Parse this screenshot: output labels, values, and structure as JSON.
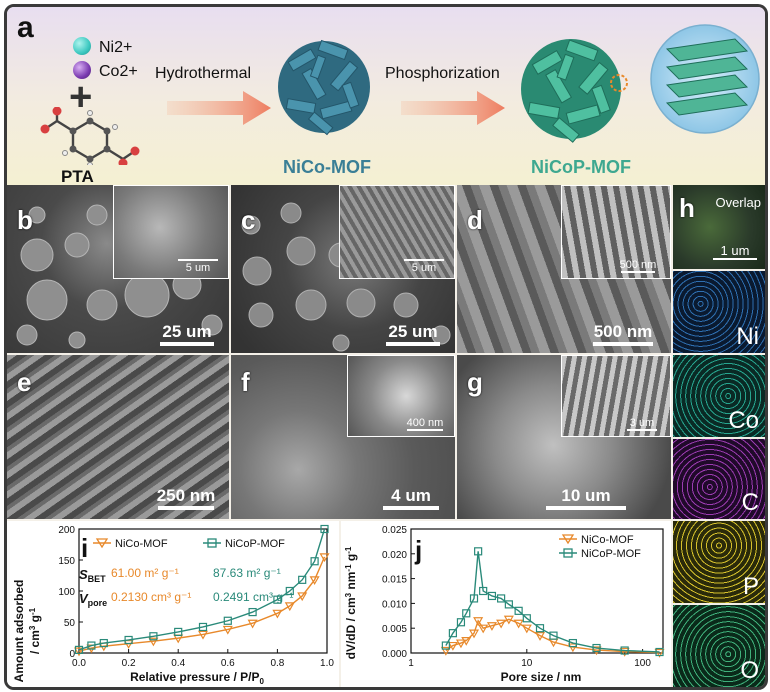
{
  "panel_a": {
    "label": "a",
    "ni": "Ni2+",
    "co": "Co2+",
    "plus": "+",
    "pta": "PTA",
    "step1": "Hydrothermal",
    "step2": "Phosphorization",
    "mof1": "NiCo-MOF",
    "mof2": "NiCoP-MOF",
    "colors": {
      "mof1": "#3a7f96",
      "mof2": "#3ea890",
      "ni": "#3cc8c0",
      "co": "#7a3ab0",
      "arrow": "#ee7d60"
    }
  },
  "sem": {
    "b": {
      "label": "b",
      "scale": "25 um",
      "inset_scale": "5 um"
    },
    "c": {
      "label": "c",
      "scale": "25 um",
      "inset_scale": "5 um"
    },
    "d": {
      "label": "d",
      "scale": "500 nm",
      "inset_scale": "500 nm"
    },
    "e": {
      "label": "e",
      "scale": "250 nm"
    },
    "f": {
      "label": "f",
      "scale": "4 um",
      "inset_scale": "400 nm"
    },
    "g": {
      "label": "g",
      "scale": "10 um",
      "inset_scale": "3 um"
    }
  },
  "panel_h": {
    "label": "h",
    "overlap": "Overlap",
    "scale": "1 um",
    "elements": [
      "Ni",
      "Co",
      "C",
      "P",
      "O"
    ],
    "colors": {
      "Ni": "#2e6fb0",
      "Co": "#27a58f",
      "C": "#9a3bb0",
      "P": "#d6c12c",
      "O": "#3fb07a"
    }
  },
  "panel_i": {
    "label": "i",
    "ylabel": "Amount adsorbed / cm3 g-1",
    "xlabel": "Relative pressure / P/P0",
    "legend": [
      "NiCo-MOF",
      "NiCoP-MOF"
    ],
    "sbet_label": "SBET",
    "vpore_label": "Vpore",
    "sbet_1": "61.00 m² g⁻¹",
    "sbet_2": "87.63 m² g⁻¹",
    "vpore_1": "0.2130 cm³ g⁻¹",
    "vpore_2": "0.2491 cm³ g⁻¹",
    "xticks": [
      "0.0",
      "0.2",
      "0.4",
      "0.6",
      "0.8",
      "1.0"
    ],
    "yticks": [
      "0",
      "50",
      "100",
      "150",
      "200"
    ]
  },
  "panel_j": {
    "label": "j",
    "ylabel": "dV/dD / cm3 nm-1 g-1",
    "xlabel": "Pore size / nm",
    "legend": [
      "NiCo-MOF",
      "NiCoP-MOF"
    ],
    "xticks": [
      "1",
      "10",
      "100"
    ],
    "yticks": [
      "0.000",
      "0.005",
      "0.010",
      "0.015",
      "0.020",
      "0.025"
    ]
  },
  "chart_data": [
    {
      "type": "line",
      "panel": "i",
      "xlabel": "Relative pressure / P/P0",
      "ylabel": "Amount adsorbed / cm3 g-1",
      "xlim": [
        0,
        1.0
      ],
      "ylim": [
        0,
        200
      ],
      "series": [
        {
          "name": "NiCo-MOF",
          "color": "#e8892b",
          "marker": "triangle-down",
          "x": [
            0.0,
            0.05,
            0.1,
            0.2,
            0.3,
            0.4,
            0.5,
            0.6,
            0.7,
            0.8,
            0.85,
            0.9,
            0.95,
            0.99
          ],
          "y": [
            3,
            8,
            11,
            15,
            19,
            24,
            30,
            38,
            48,
            64,
            76,
            92,
            118,
            155
          ]
        },
        {
          "name": "NiCoP-MOF",
          "color": "#2a8a7a",
          "marker": "square",
          "x": [
            0.0,
            0.05,
            0.1,
            0.2,
            0.3,
            0.4,
            0.5,
            0.6,
            0.7,
            0.8,
            0.85,
            0.9,
            0.95,
            0.99
          ],
          "y": [
            5,
            12,
            16,
            21,
            27,
            34,
            42,
            52,
            66,
            86,
            100,
            118,
            148,
            200
          ]
        }
      ]
    },
    {
      "type": "line",
      "panel": "j",
      "xlabel": "Pore size / nm",
      "ylabel": "dV/dD / cm3 nm-1 g-1",
      "xscale": "log",
      "xlim": [
        1,
        150
      ],
      "ylim": [
        0,
        0.025
      ],
      "series": [
        {
          "name": "NiCo-MOF",
          "color": "#e8892b",
          "marker": "triangle-down",
          "x": [
            2.0,
            2.3,
            2.7,
            3.0,
            3.5,
            3.8,
            4.2,
            5.0,
            6.0,
            7.0,
            8.5,
            10,
            13,
            17,
            25,
            40,
            70,
            140
          ],
          "y": [
            0.0005,
            0.0015,
            0.002,
            0.0025,
            0.004,
            0.0065,
            0.005,
            0.0055,
            0.006,
            0.0068,
            0.006,
            0.005,
            0.0035,
            0.0022,
            0.0012,
            0.0006,
            0.0003,
            0.0001
          ]
        },
        {
          "name": "NiCoP-MOF",
          "color": "#2a8a7a",
          "marker": "square",
          "x": [
            2.0,
            2.3,
            2.7,
            3.0,
            3.5,
            3.8,
            4.2,
            5.0,
            6.0,
            7.0,
            8.5,
            10,
            13,
            17,
            25,
            40,
            70,
            140
          ],
          "y": [
            0.0015,
            0.004,
            0.0062,
            0.008,
            0.011,
            0.0205,
            0.0125,
            0.0115,
            0.011,
            0.0098,
            0.0085,
            0.007,
            0.005,
            0.0035,
            0.002,
            0.001,
            0.0005,
            0.0002
          ]
        }
      ]
    }
  ]
}
